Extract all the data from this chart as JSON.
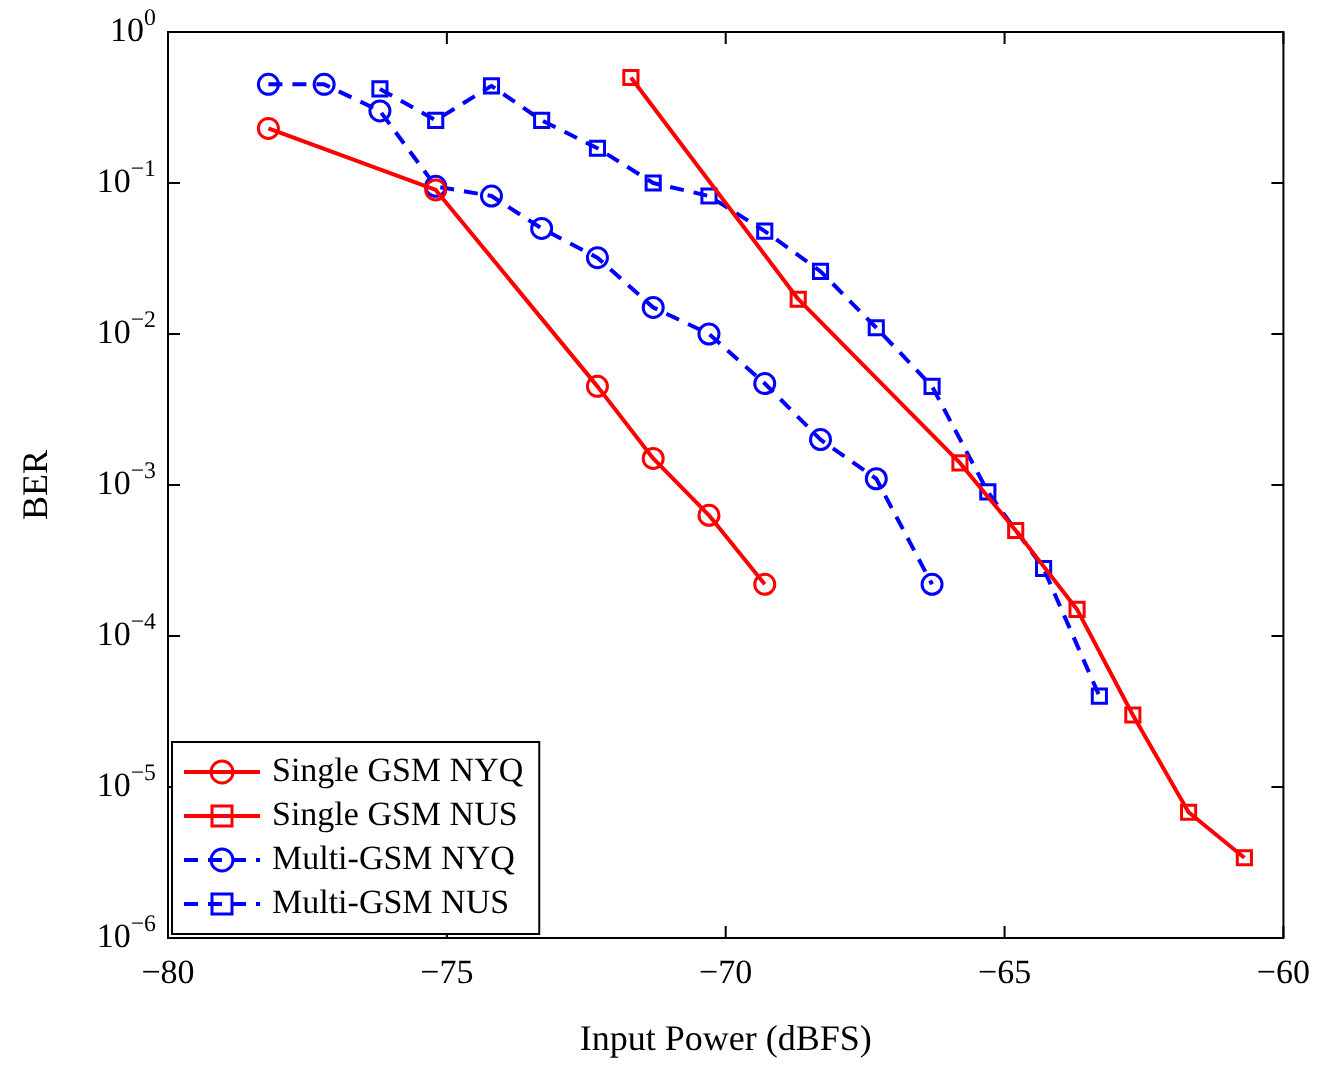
{
  "chart_data": {
    "type": "line",
    "xlabel": "Input Power (dBFS)",
    "ylabel": "BER",
    "log": "y",
    "grid": false,
    "legend": "bottom left",
    "xlim": [
      -80,
      -60
    ],
    "xticks": [
      -80,
      -75,
      -70,
      -65,
      -60
    ],
    "ylim": [
      1e-06,
      1
    ],
    "yticks": [
      {
        "value": 1e-06,
        "label": "10$^{−6}$"
      },
      {
        "value": 1e-05,
        "label": "10$^{−5}$"
      },
      {
        "value": 0.0001,
        "label": "10$^{−4}$"
      },
      {
        "value": 0.001,
        "label": "10$^{−3}$"
      },
      {
        "value": 0.01,
        "label": "10$^{−2}$"
      },
      {
        "value": 0.1,
        "label": "10$^{−1}$"
      },
      {
        "value": 1,
        "label": "10$^{0}$"
      }
    ],
    "series": [
      {
        "name": "Single GSM NYQ",
        "color": "#ff0000",
        "marker": "circle",
        "line_style": "solid",
        "x": [
          -78.2,
          -75.2,
          -72.3,
          -71.3,
          -70.3,
          -69.3
        ],
        "values": [
          0.23,
          0.09,
          0.0045,
          0.0015,
          0.00063,
          0.00022
        ]
      },
      {
        "name": "Single GSM NUS",
        "color": "#ff0000",
        "marker": "square",
        "line_style": "solid",
        "x": [
          -71.7,
          -68.7,
          -65.8,
          -64.8,
          -63.7,
          -62.7,
          -61.7,
          -60.7
        ],
        "values": [
          0.5,
          0.017,
          0.0014,
          0.0005,
          0.00015,
          3e-05,
          6.8e-06,
          3.4e-06
        ]
      },
      {
        "name": "Multi-GSM NYQ",
        "color": "#0000ff",
        "marker": "circle",
        "line_style": "dashed",
        "x": [
          -78.2,
          -77.2,
          -76.2,
          -75.2,
          -74.2,
          -73.3,
          -72.3,
          -71.3,
          -70.3,
          -69.3,
          -68.3,
          -67.3,
          -66.3
        ],
        "values": [
          0.45,
          0.45,
          0.3,
          0.095,
          0.082,
          0.05,
          0.032,
          0.015,
          0.01,
          0.0047,
          0.002,
          0.0011,
          0.00022
        ]
      },
      {
        "name": "Multi-GSM NUS",
        "color": "#0000ff",
        "marker": "square",
        "line_style": "dashed",
        "x": [
          -76.2,
          -75.2,
          -74.2,
          -73.3,
          -72.3,
          -71.3,
          -70.3,
          -69.3,
          -68.3,
          -67.3,
          -66.3,
          -65.3,
          -64.3,
          -63.3
        ],
        "values": [
          0.42,
          0.26,
          0.44,
          0.26,
          0.17,
          0.1,
          0.082,
          0.048,
          0.026,
          0.011,
          0.0045,
          0.0009,
          0.00028,
          4e-05
        ]
      }
    ]
  }
}
